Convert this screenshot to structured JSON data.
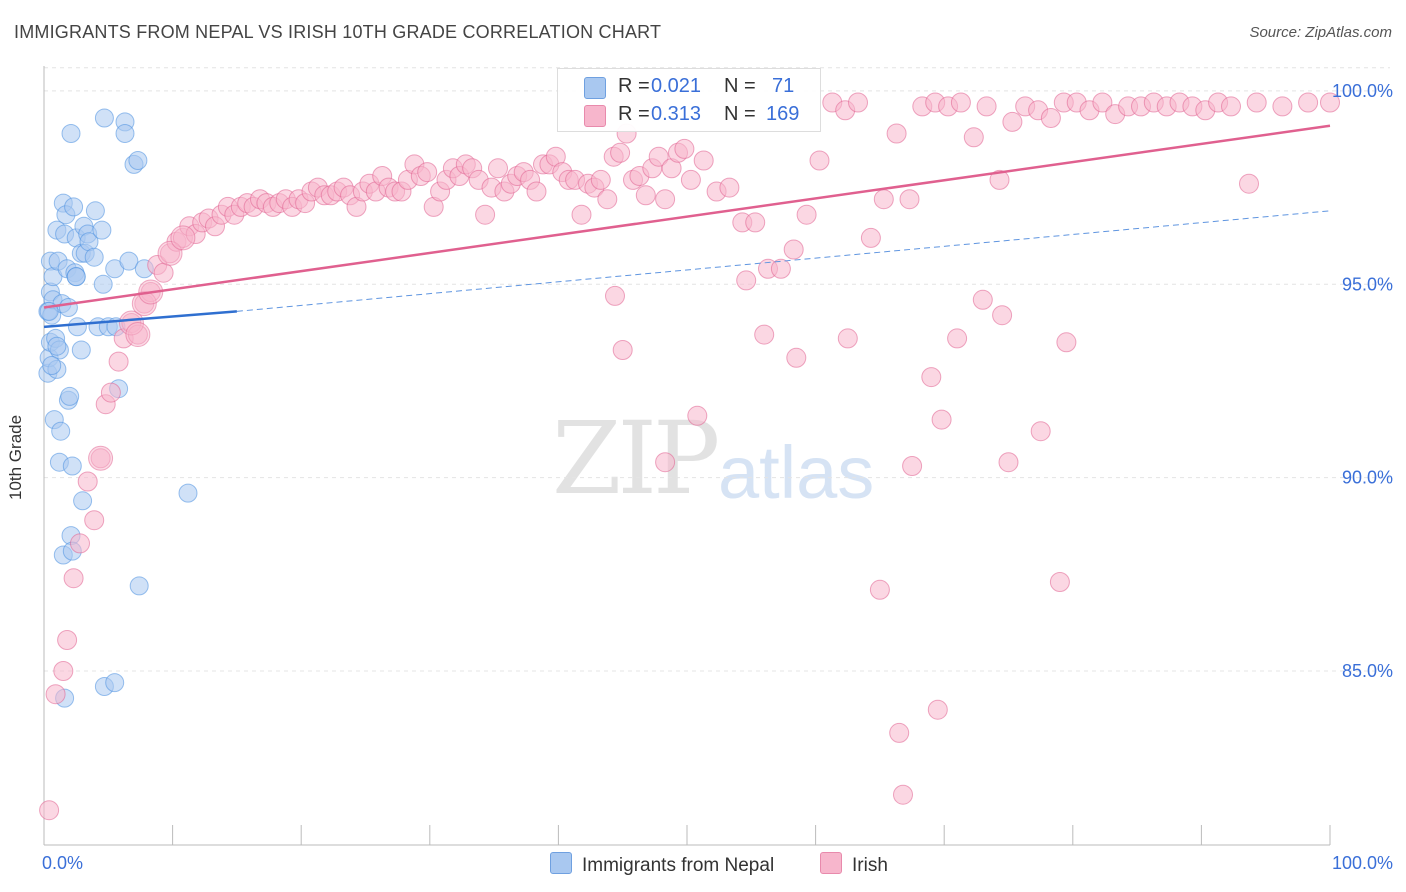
{
  "title": "IMMIGRANTS FROM NEPAL VS IRISH 10TH GRADE CORRELATION CHART",
  "source": "Source: ZipAtlas.com",
  "watermark": {
    "zip": "ZIP",
    "atlas": "atlas"
  },
  "legend_top": {
    "rows": [
      {
        "r_label": "R = ",
        "r_value": "0.021",
        "n_label": "N = ",
        "n_value": "71",
        "color": "#a9c8f0"
      },
      {
        "r_label": "R = ",
        "r_value": "0.313",
        "n_label": "N = ",
        "n_value": "169",
        "color": "#f7b6cc"
      }
    ]
  },
  "legend_bottom": {
    "items": [
      {
        "label": "Immigrants from Nepal",
        "color": "#a9c8f0"
      },
      {
        "label": "Irish",
        "color": "#f7b6cc"
      }
    ]
  },
  "chart_data": {
    "type": "scatter",
    "xlabel": "",
    "ylabel": "10th Grade",
    "xlim": [
      0,
      100
    ],
    "ylim": [
      80.5,
      100.8
    ],
    "x_tick_labels": [
      {
        "value": 0,
        "label": "0.0%"
      },
      {
        "value": 100,
        "label": "100.0%"
      }
    ],
    "y_tick_labels": [
      {
        "value": 100,
        "label": "100.0%"
      },
      {
        "value": 95,
        "label": "95.0%"
      },
      {
        "value": 90,
        "label": "90.0%"
      },
      {
        "value": 85,
        "label": "85.0%"
      }
    ],
    "grid": true,
    "legend_placement": "top-center",
    "series": [
      {
        "name": "Immigrants from Nepal",
        "color": "#4a8fe0",
        "fill": "#a9c8f0",
        "stats": {
          "R": 0.021,
          "N": 71
        },
        "trend": {
          "x0": 0,
          "y0": 93.9,
          "x1": 15,
          "y1": 94.3,
          "dashed_to": 100,
          "dashed_y1": 96.9
        },
        "points": [
          [
            0.3,
            94.3
          ],
          [
            0.3,
            92.7
          ],
          [
            0.4,
            93.1
          ],
          [
            0.5,
            93.5
          ],
          [
            0.5,
            94.8
          ],
          [
            0.5,
            95.6
          ],
          [
            0.6,
            94.2
          ],
          [
            0.7,
            94.6
          ],
          [
            0.7,
            95.2
          ],
          [
            0.8,
            91.5
          ],
          [
            0.9,
            93.6
          ],
          [
            1.0,
            96.4
          ],
          [
            1.0,
            92.8
          ],
          [
            1.1,
            95.6
          ],
          [
            1.2,
            93.3
          ],
          [
            1.2,
            90.4
          ],
          [
            1.3,
            91.2
          ],
          [
            1.4,
            94.5
          ],
          [
            1.5,
            97.1
          ],
          [
            1.5,
            88.0
          ],
          [
            1.6,
            96.3
          ],
          [
            1.7,
            96.8
          ],
          [
            1.8,
            95.4
          ],
          [
            1.9,
            94.4
          ],
          [
            1.9,
            92.0
          ],
          [
            2.0,
            92.1
          ],
          [
            2.1,
            88.5
          ],
          [
            2.1,
            98.9
          ],
          [
            2.2,
            90.3
          ],
          [
            2.2,
            88.1
          ],
          [
            2.3,
            97.0
          ],
          [
            2.4,
            95.3
          ],
          [
            2.5,
            96.2
          ],
          [
            2.5,
            95.2
          ],
          [
            2.6,
            93.9
          ],
          [
            2.9,
            95.8
          ],
          [
            2.9,
            93.3
          ],
          [
            3.0,
            89.4
          ],
          [
            3.1,
            96.5
          ],
          [
            3.2,
            95.8
          ],
          [
            3.4,
            96.3
          ],
          [
            3.5,
            96.1
          ],
          [
            3.9,
            95.7
          ],
          [
            4.0,
            96.9
          ],
          [
            4.2,
            93.9
          ],
          [
            4.5,
            96.4
          ],
          [
            4.6,
            95.0
          ],
          [
            4.7,
            99.3
          ],
          [
            4.7,
            84.6
          ],
          [
            5.0,
            93.9
          ],
          [
            5.5,
            95.4
          ],
          [
            5.5,
            84.7
          ],
          [
            5.6,
            93.9
          ],
          [
            5.8,
            92.3
          ],
          [
            6.3,
            99.2
          ],
          [
            6.3,
            98.9
          ],
          [
            6.6,
            95.6
          ],
          [
            7.0,
            98.1
          ],
          [
            7.3,
            98.2
          ],
          [
            7.4,
            87.2
          ],
          [
            7.8,
            95.4
          ],
          [
            11.2,
            89.6
          ],
          [
            0.4,
            94.3
          ],
          [
            0.6,
            92.9
          ],
          [
            1.0,
            93.4
          ],
          [
            1.6,
            84.3
          ],
          [
            2.5,
            95.2
          ]
        ]
      },
      {
        "name": "Irish",
        "color": "#e0608f",
        "fill": "#f7b6cc",
        "stats": {
          "R": 0.313,
          "N": 169
        },
        "trend": {
          "x0": 0,
          "y0": 94.4,
          "x1": 100,
          "y1": 99.1
        },
        "points": [
          [
            0.4,
            81.4
          ],
          [
            0.9,
            84.4
          ],
          [
            1.5,
            85.0
          ],
          [
            1.8,
            85.8
          ],
          [
            2.3,
            87.4
          ],
          [
            2.8,
            88.3
          ],
          [
            3.4,
            89.9
          ],
          [
            3.9,
            88.9
          ],
          [
            4.4,
            90.5
          ],
          [
            4.8,
            91.9
          ],
          [
            5.2,
            92.2
          ],
          [
            5.8,
            93.0
          ],
          [
            6.2,
            93.6
          ],
          [
            6.8,
            94.0
          ],
          [
            7.3,
            93.7
          ],
          [
            7.8,
            94.5
          ],
          [
            8.3,
            94.8
          ],
          [
            8.8,
            95.5
          ],
          [
            9.3,
            95.3
          ],
          [
            9.8,
            95.8
          ],
          [
            10.3,
            96.1
          ],
          [
            10.8,
            96.2
          ],
          [
            11.3,
            96.5
          ],
          [
            11.8,
            96.3
          ],
          [
            12.3,
            96.6
          ],
          [
            12.8,
            96.7
          ],
          [
            13.3,
            96.5
          ],
          [
            13.8,
            96.8
          ],
          [
            14.3,
            97.0
          ],
          [
            14.8,
            96.8
          ],
          [
            15.3,
            97.0
          ],
          [
            15.8,
            97.1
          ],
          [
            16.3,
            97.0
          ],
          [
            16.8,
            97.2
          ],
          [
            17.3,
            97.1
          ],
          [
            17.8,
            97.0
          ],
          [
            18.3,
            97.1
          ],
          [
            18.8,
            97.2
          ],
          [
            19.3,
            97.0
          ],
          [
            19.8,
            97.2
          ],
          [
            20.3,
            97.1
          ],
          [
            20.8,
            97.4
          ],
          [
            21.3,
            97.5
          ],
          [
            21.8,
            97.3
          ],
          [
            22.3,
            97.3
          ],
          [
            22.8,
            97.4
          ],
          [
            23.3,
            97.5
          ],
          [
            23.8,
            97.3
          ],
          [
            24.3,
            97.0
          ],
          [
            24.8,
            97.4
          ],
          [
            25.3,
            97.6
          ],
          [
            25.8,
            97.4
          ],
          [
            26.3,
            97.8
          ],
          [
            26.8,
            97.5
          ],
          [
            27.3,
            97.4
          ],
          [
            27.8,
            97.4
          ],
          [
            28.3,
            97.7
          ],
          [
            28.8,
            98.1
          ],
          [
            29.3,
            97.8
          ],
          [
            29.8,
            97.9
          ],
          [
            30.3,
            97.0
          ],
          [
            30.8,
            97.4
          ],
          [
            31.3,
            97.7
          ],
          [
            31.8,
            98.0
          ],
          [
            32.3,
            97.8
          ],
          [
            32.8,
            98.1
          ],
          [
            33.3,
            98.0
          ],
          [
            33.8,
            97.7
          ],
          [
            34.3,
            96.8
          ],
          [
            34.8,
            97.5
          ],
          [
            35.3,
            98.0
          ],
          [
            35.8,
            97.4
          ],
          [
            36.3,
            97.6
          ],
          [
            36.8,
            97.8
          ],
          [
            37.3,
            97.9
          ],
          [
            37.8,
            97.7
          ],
          [
            38.3,
            97.4
          ],
          [
            38.8,
            98.1
          ],
          [
            39.3,
            98.1
          ],
          [
            39.8,
            98.3
          ],
          [
            40.3,
            97.9
          ],
          [
            40.8,
            97.7
          ],
          [
            41.3,
            97.7
          ],
          [
            41.8,
            96.8
          ],
          [
            42.3,
            97.6
          ],
          [
            42.8,
            97.5
          ],
          [
            43.3,
            97.7
          ],
          [
            43.8,
            97.2
          ],
          [
            44.3,
            98.3
          ],
          [
            44.8,
            98.4
          ],
          [
            45.3,
            98.9
          ],
          [
            45.8,
            97.7
          ],
          [
            46.3,
            97.8
          ],
          [
            46.8,
            97.3
          ],
          [
            47.3,
            98.0
          ],
          [
            47.8,
            98.3
          ],
          [
            48.3,
            97.2
          ],
          [
            48.8,
            98.0
          ],
          [
            49.3,
            98.4
          ],
          [
            49.8,
            98.5
          ],
          [
            50.3,
            97.7
          ],
          [
            51.3,
            98.2
          ],
          [
            52.3,
            97.4
          ],
          [
            53.3,
            97.5
          ],
          [
            54.3,
            96.6
          ],
          [
            55.3,
            96.6
          ],
          [
            56.3,
            95.4
          ],
          [
            57.3,
            95.4
          ],
          [
            58.3,
            95.9
          ],
          [
            59.3,
            96.8
          ],
          [
            60.3,
            98.2
          ],
          [
            61.3,
            99.7
          ],
          [
            62.3,
            99.5
          ],
          [
            63.3,
            99.7
          ],
          [
            64.3,
            96.2
          ],
          [
            65.3,
            97.2
          ],
          [
            66.3,
            98.9
          ],
          [
            67.3,
            97.2
          ],
          [
            68.3,
            99.6
          ],
          [
            69.3,
            99.7
          ],
          [
            70.3,
            99.6
          ],
          [
            71.3,
            99.7
          ],
          [
            72.3,
            98.8
          ],
          [
            73.3,
            99.6
          ],
          [
            74.3,
            97.7
          ],
          [
            75.3,
            99.2
          ],
          [
            76.3,
            99.6
          ],
          [
            77.3,
            99.5
          ],
          [
            78.3,
            99.3
          ],
          [
            79.3,
            99.7
          ],
          [
            80.3,
            99.7
          ],
          [
            81.3,
            99.5
          ],
          [
            82.3,
            99.7
          ],
          [
            83.3,
            99.4
          ],
          [
            84.3,
            99.6
          ],
          [
            85.3,
            99.6
          ],
          [
            86.3,
            99.7
          ],
          [
            87.3,
            99.6
          ],
          [
            88.3,
            99.7
          ],
          [
            89.3,
            99.6
          ],
          [
            90.3,
            99.5
          ],
          [
            91.3,
            99.7
          ],
          [
            92.3,
            99.6
          ],
          [
            94.3,
            99.7
          ],
          [
            96.3,
            99.6
          ],
          [
            98.3,
            99.7
          ],
          [
            93.7,
            97.6
          ],
          [
            100.0,
            99.7
          ],
          [
            56.0,
            93.7
          ],
          [
            58.5,
            93.1
          ],
          [
            62.5,
            93.6
          ],
          [
            67.5,
            90.3
          ],
          [
            69.0,
            92.6
          ],
          [
            71.0,
            93.6
          ],
          [
            73.0,
            94.6
          ],
          [
            74.5,
            94.2
          ],
          [
            75.0,
            90.4
          ],
          [
            77.5,
            91.2
          ],
          [
            79.5,
            93.5
          ],
          [
            79.0,
            87.3
          ],
          [
            65.0,
            87.1
          ],
          [
            66.5,
            83.4
          ],
          [
            69.5,
            84.0
          ],
          [
            66.8,
            81.8
          ],
          [
            50.8,
            91.6
          ],
          [
            48.3,
            90.4
          ],
          [
            45.0,
            93.3
          ],
          [
            44.4,
            94.7
          ],
          [
            54.6,
            95.1
          ],
          [
            69.8,
            91.5
          ]
        ]
      }
    ]
  }
}
